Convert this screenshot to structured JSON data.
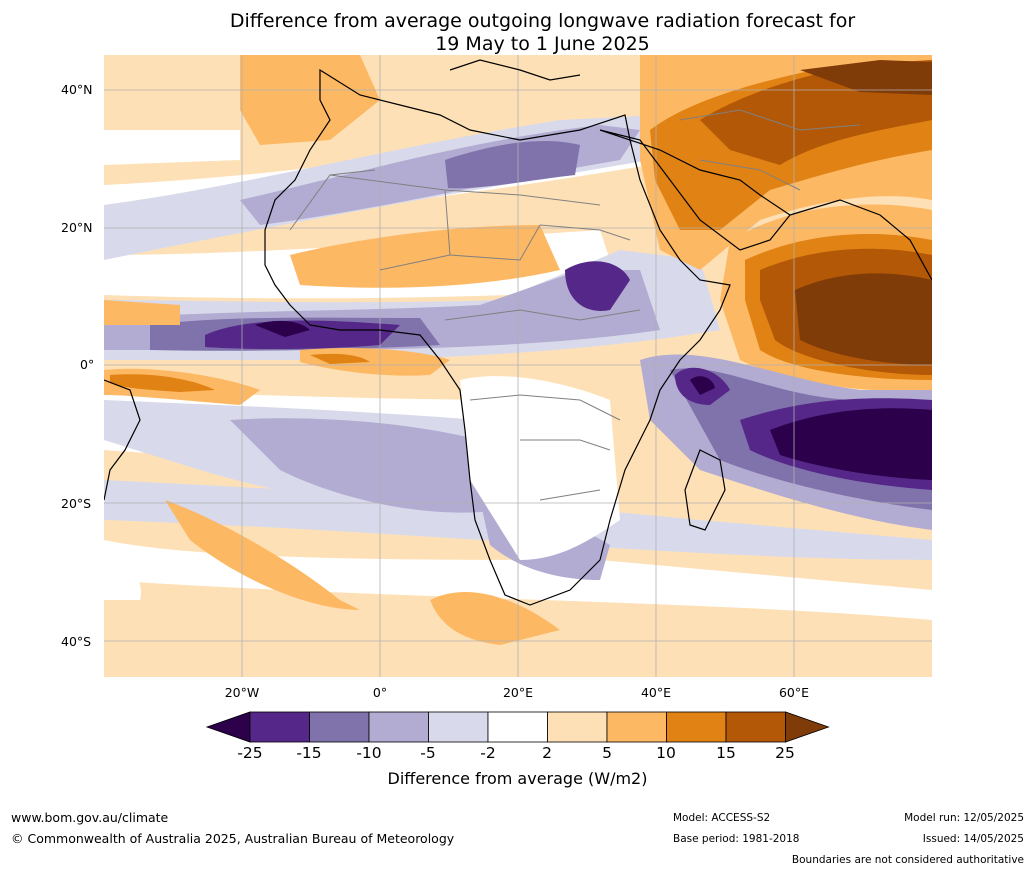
{
  "title": {
    "line1": "Difference from average outgoing longwave radiation forecast for",
    "line2": "19 May to 1 June 2025"
  },
  "map": {
    "region": "Africa and Indian Ocean",
    "lat_ticks": [
      "40°N",
      "20°N",
      "0°",
      "20°S",
      "40°S"
    ],
    "lon_ticks": [
      "20°W",
      "0°",
      "20°E",
      "40°E",
      "60°E"
    ],
    "colors": {
      "ocean_background": "#ffffff",
      "coast": "#000000",
      "borders": "#808080",
      "gridlines": "#b0b0b0"
    }
  },
  "colorbar": {
    "title": "Difference from average (W/m2)",
    "tick_labels": [
      "-25",
      "-15",
      "-10",
      "-5",
      "-2",
      "2",
      "5",
      "10",
      "15",
      "25"
    ],
    "colors": [
      "#2d004b",
      "#542788",
      "#8073ac",
      "#b2abd2",
      "#d8daeb",
      "#ffffff",
      "#fee0b6",
      "#fdb863",
      "#e08214",
      "#b35806",
      "#7f3b08"
    ]
  },
  "footer": {
    "website": "www.bom.gov.au/climate",
    "copyright": "© Commonwealth of Australia 2025, Australian Bureau of Meteorology",
    "model": "Model: ACCESS-S2",
    "base_period": "Base period: 1981-2018",
    "model_run": "Model run: 12/05/2025",
    "issued": "Issued: 14/05/2025",
    "disclaimer": "Boundaries are not considered authoritative"
  }
}
